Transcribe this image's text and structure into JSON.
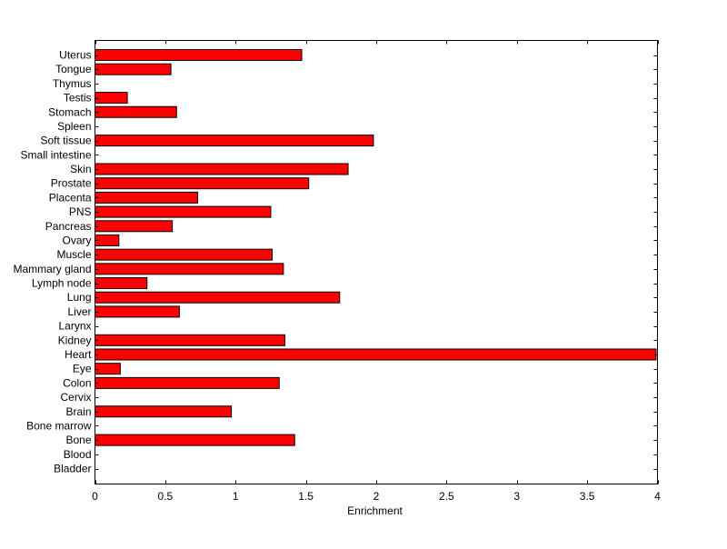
{
  "chart_data": {
    "type": "bar",
    "orientation": "horizontal",
    "title": "",
    "xlabel": "Enrichment",
    "ylabel": "",
    "xlim": [
      0,
      4
    ],
    "x_ticks": [
      "0",
      "0.5",
      "1",
      "1.5",
      "2",
      "2.5",
      "3",
      "3.5",
      "4"
    ],
    "x_tick_values": [
      0,
      0.5,
      1,
      1.5,
      2,
      2.5,
      3,
      3.5,
      4
    ],
    "grid": false,
    "legend": "none",
    "bar_color": "#ff0000",
    "edge_color": "#000000",
    "categories": [
      "Uterus",
      "Tongue",
      "Thymus",
      "Testis",
      "Stomach",
      "Spleen",
      "Soft tissue",
      "Small intestine",
      "Skin",
      "Prostate",
      "Placenta",
      "PNS",
      "Pancreas",
      "Ovary",
      "Muscle",
      "Mammary gland",
      "Lymph node",
      "Lung",
      "Liver",
      "Larynx",
      "Kidney",
      "Heart",
      "Eye",
      "Colon",
      "Cervix",
      "Brain",
      "Bone marrow",
      "Bone",
      "Blood",
      "Bladder"
    ],
    "values": [
      1.47,
      0.54,
      0,
      0.23,
      0.58,
      0,
      1.98,
      0,
      1.8,
      1.52,
      0.73,
      1.25,
      0.55,
      0.17,
      1.26,
      1.34,
      0.37,
      1.74,
      0.6,
      0,
      1.35,
      3.99,
      0.18,
      1.31,
      0,
      0.97,
      0,
      1.42,
      0,
      0
    ]
  }
}
